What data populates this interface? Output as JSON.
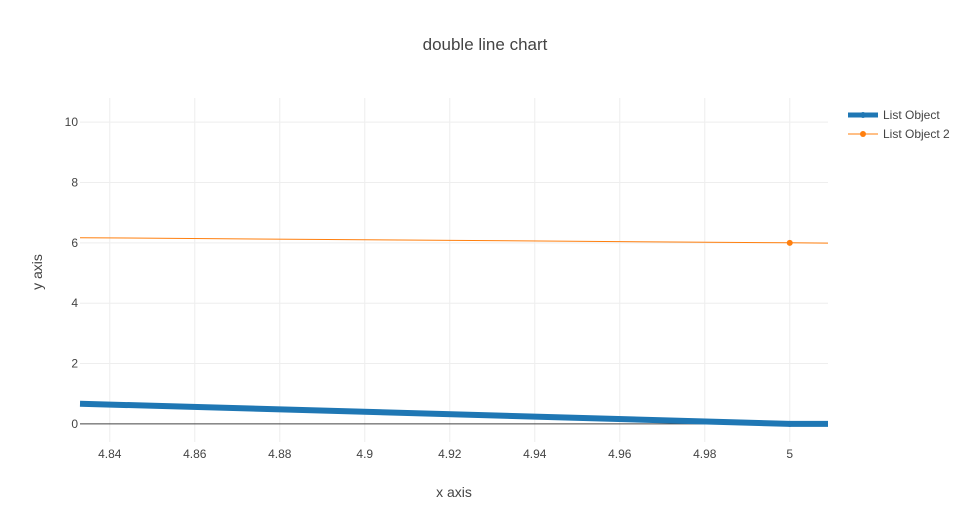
{
  "chart_data": {
    "type": "line",
    "title": "double line chart",
    "xlabel": "x axis",
    "ylabel": "y axis",
    "xlim": [
      4.833,
      5.009
    ],
    "ylim": [
      -0.6,
      10.8
    ],
    "x_ticks": [
      4.84,
      4.86,
      4.88,
      4.9,
      4.92,
      4.94,
      4.96,
      4.98,
      5
    ],
    "x_tick_labels": [
      "4.84",
      "4.86",
      "4.88",
      "4.9",
      "4.92",
      "4.94",
      "4.96",
      "4.98",
      "5"
    ],
    "y_ticks": [
      0,
      2,
      4,
      6,
      8,
      10
    ],
    "y_tick_labels": [
      "0",
      "2",
      "4",
      "6",
      "8",
      "10"
    ],
    "grid": true,
    "legend": "top-right",
    "series": [
      {
        "name": "List Object",
        "color": "#1f77b4",
        "points": [
          [
            4.833,
            0.67
          ],
          [
            5.0,
            0.0
          ],
          [
            5.009,
            0.0
          ]
        ],
        "markers": [
          [
            5.0,
            0.0
          ]
        ],
        "line_width": "thick"
      },
      {
        "name": "List Object 2",
        "color": "#ff7f0e",
        "points": [
          [
            4.833,
            6.17
          ],
          [
            5.0,
            6.0
          ],
          [
            5.009,
            5.99
          ]
        ],
        "markers": [
          [
            5.0,
            6.0
          ]
        ],
        "line_width": "thin"
      }
    ]
  }
}
